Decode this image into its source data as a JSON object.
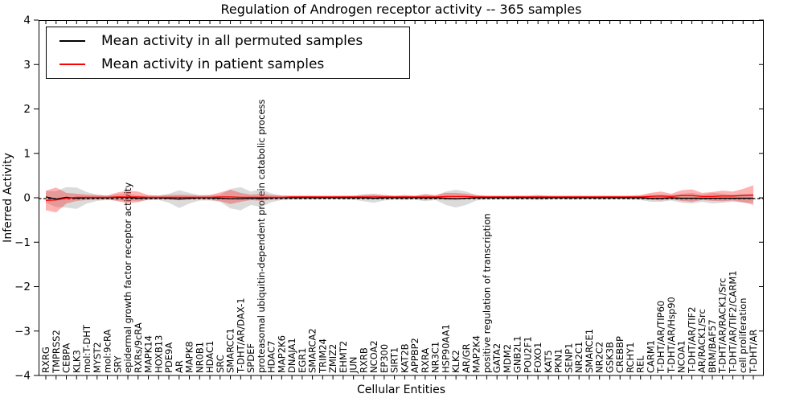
{
  "chart_data": {
    "type": "line",
    "title": "Regulation of Androgen receptor activity -- 365 samples",
    "xlabel": "Cellular Entities",
    "ylabel": "Inferred Activity",
    "ylim": [
      -4,
      4
    ],
    "ytick_labels": [
      "4",
      "3",
      "2",
      "1",
      "0",
      "−1",
      "−2",
      "−3",
      "−4"
    ],
    "ytick_values": [
      4,
      3,
      2,
      1,
      0,
      -1,
      -2,
      -3,
      -4
    ],
    "grid": false,
    "legend_position": "upper left",
    "legend": [
      {
        "label": "Mean activity in all permuted samples",
        "color": "#000000"
      },
      {
        "label": "Mean activity in patient samples",
        "color": "#ff0000"
      }
    ],
    "zero_line": {
      "style": "dashed",
      "color": "#000000",
      "y": 0
    },
    "categories": [
      "RXRG",
      "TMPRSS2",
      "CEBPA",
      "KLK3",
      "mol:T-DHT",
      "MYST2",
      "mol:9cRA",
      "SRY",
      "epidermal growth factor receptor activity",
      "RXRs/9cRA",
      "MAPK14",
      "HOXB13",
      "PDE9A",
      "AR",
      "MAPK8",
      "NR0B1",
      "HDAC1",
      "SRC",
      "SMARCC1",
      "T-DHT/AR/DAX-1",
      "SPDEF",
      "proteasomal ubiquitin-dependent protein catabolic process",
      "HDAC7",
      "MAP2K6",
      "DNAJA1",
      "EGR1",
      "SMARCA2",
      "TRIM24",
      "ZMIZ2",
      "EHMT2",
      "JUN",
      "RXRB",
      "NCOA2",
      "EP300",
      "SIRT1",
      "KAT2B",
      "APPBP2",
      "RXRA",
      "NR3C1",
      "HSP90AA1",
      "KLK2",
      "AR/GR",
      "MAP2K4",
      "positive regulation of transcription",
      "GATA2",
      "MDM2",
      "GNB2L1",
      "POU2F1",
      "FOXO1",
      "KAT5",
      "PKN1",
      "SENP1",
      "NR2C1",
      "SMARCE1",
      "NR2C2",
      "GSK3B",
      "CREBBP",
      "RCHY1",
      "REL",
      "CARM1",
      "T-DHT/AR/TIP60",
      "T-DHT/AR/Hsp90",
      "NCOA1",
      "T-DHT/AR/TIF2",
      "AR/RACK1/Src",
      "BRM/BAF57",
      "T-DHT/AR/RACK1/Src",
      "T-DHT/AR/TIF2/CARM1",
      "cell proliferation",
      "T-DHT/AR"
    ],
    "series": [
      {
        "name": "Mean activity in all permuted samples",
        "type": "line",
        "color": "#000000",
        "values": [
          0.02,
          -0.03,
          0.01,
          -0.01,
          0,
          0,
          0,
          0.01,
          0.01,
          -0.01,
          0,
          0,
          -0.01,
          -0.03,
          -0.01,
          0,
          0,
          -0.01,
          -0.02,
          -0.02,
          -0.01,
          -0.01,
          0,
          0,
          0,
          0,
          0,
          0,
          0,
          0,
          0,
          0,
          -0.01,
          0,
          0,
          0,
          0,
          0,
          0,
          -0.01,
          -0.02,
          -0.01,
          0,
          0,
          0,
          0,
          0,
          0,
          0,
          0,
          0,
          0,
          0,
          0,
          0,
          0,
          0,
          0,
          0,
          -0.01,
          -0.01,
          0,
          -0.01,
          -0.01,
          -0.01,
          -0.01,
          -0.01,
          -0.01,
          -0.01,
          -0.01
        ]
      },
      {
        "name": "Mean activity in patient samples",
        "type": "line",
        "color": "#ff0000",
        "values": [
          -0.06,
          -0.05,
          -0.01,
          0.01,
          0.01,
          0.01,
          0.01,
          0.02,
          0.02,
          0.02,
          0.01,
          0.01,
          0.01,
          0.01,
          0.01,
          0.01,
          0.01,
          0.02,
          0.02,
          0.01,
          0.01,
          0.01,
          0.01,
          0.01,
          0.02,
          0.02,
          0.02,
          0.02,
          0.02,
          0.02,
          0.02,
          0.02,
          0.02,
          0.02,
          0.02,
          0.02,
          0.02,
          0.02,
          0.02,
          0.03,
          0.03,
          0.03,
          0.02,
          0.02,
          0.02,
          0.02,
          0.02,
          0.02,
          0.02,
          0.02,
          0.02,
          0.02,
          0.02,
          0.02,
          0.02,
          0.02,
          0.02,
          0.02,
          0.02,
          0.03,
          0.04,
          0.03,
          0.05,
          0.05,
          0.03,
          0.03,
          0.04,
          0.04,
          0.05,
          0.06
        ]
      },
      {
        "name": "permuted-samples-spread-band",
        "type": "band",
        "center": "permuted",
        "color": "#999999",
        "opacity": 0.35,
        "halfwidths": [
          0.13,
          0.18,
          0.23,
          0.24,
          0.13,
          0.07,
          0.05,
          0.07,
          0.08,
          0.06,
          0.05,
          0.05,
          0.1,
          0.2,
          0.12,
          0.06,
          0.06,
          0.08,
          0.22,
          0.26,
          0.15,
          0.2,
          0.1,
          0.05,
          0.04,
          0.04,
          0.04,
          0.03,
          0.03,
          0.04,
          0.04,
          0.08,
          0.1,
          0.06,
          0.04,
          0.05,
          0.04,
          0.08,
          0.05,
          0.15,
          0.2,
          0.15,
          0.06,
          0.04,
          0.04,
          0.03,
          0.04,
          0.04,
          0.05,
          0.04,
          0.03,
          0.04,
          0.04,
          0.03,
          0.04,
          0.04,
          0.03,
          0.04,
          0.05,
          0.08,
          0.08,
          0.06,
          0.1,
          0.12,
          0.08,
          0.12,
          0.1,
          0.08,
          0.1,
          0.1
        ]
      },
      {
        "name": "patient-samples-spread-band",
        "type": "band",
        "center": "patient",
        "color": "#ff0000",
        "opacity": 0.3,
        "halfwidths": [
          0.22,
          0.28,
          0.12,
          0.08,
          0.06,
          0.05,
          0.04,
          0.1,
          0.14,
          0.12,
          0.05,
          0.04,
          0.05,
          0.06,
          0.05,
          0.04,
          0.05,
          0.1,
          0.16,
          0.1,
          0.06,
          0.08,
          0.05,
          0.04,
          0.03,
          0.03,
          0.03,
          0.03,
          0.03,
          0.03,
          0.03,
          0.04,
          0.05,
          0.04,
          0.03,
          0.04,
          0.03,
          0.06,
          0.04,
          0.08,
          0.08,
          0.06,
          0.04,
          0.03,
          0.03,
          0.03,
          0.03,
          0.03,
          0.04,
          0.03,
          0.03,
          0.03,
          0.03,
          0.03,
          0.03,
          0.03,
          0.03,
          0.03,
          0.04,
          0.08,
          0.1,
          0.06,
          0.12,
          0.14,
          0.08,
          0.1,
          0.12,
          0.1,
          0.15,
          0.22
        ]
      }
    ]
  }
}
